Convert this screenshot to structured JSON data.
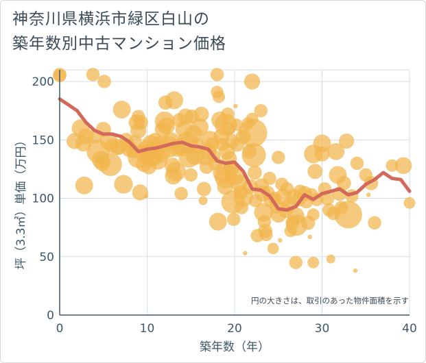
{
  "chart_data": {
    "type": "scatter",
    "title_lines": [
      "神奈川県横浜市緑区白山の",
      "築年数別中古マンション価格"
    ],
    "xlabel": "築年数（年）",
    "ylabel": "坪（3.3㎡）単価（万円）",
    "xlim": [
      0,
      40
    ],
    "ylim": [
      0,
      210
    ],
    "xticks": [
      "0",
      "10",
      "20",
      "30",
      "40"
    ],
    "yticks": [
      "0",
      "50",
      "100",
      "150",
      "200"
    ],
    "note": "円の大きさは、取引のあった物件面積を示す",
    "grid": true,
    "colors": {
      "bubble": "#f1b54e",
      "line": "#d2695a",
      "grid": "#d3dde3",
      "axis": "#3d5868"
    },
    "bubbles": [
      {
        "x": 0,
        "y": 206,
        "s": 1.5
      },
      {
        "x": 0,
        "y": 205,
        "s": 1.5
      },
      {
        "x": 1.7,
        "y": 149,
        "s": 1.8
      },
      {
        "x": 2.4,
        "y": 160,
        "s": 2.0
      },
      {
        "x": 2.7,
        "y": 147,
        "s": 1.8
      },
      {
        "x": 2.8,
        "y": 111,
        "s": 2.0
      },
      {
        "x": 3,
        "y": 153,
        "s": 1.8
      },
      {
        "x": 3.8,
        "y": 206,
        "s": 1.5
      },
      {
        "x": 4,
        "y": 153,
        "s": 1.6
      },
      {
        "x": 4.4,
        "y": 140,
        "s": 2.6
      },
      {
        "x": 4.7,
        "y": 133,
        "s": 2.0
      },
      {
        "x": 4.9,
        "y": 130,
        "s": 1.8
      },
      {
        "x": 5,
        "y": 159,
        "s": 1.7
      },
      {
        "x": 5.1,
        "y": 200,
        "s": 1.5
      },
      {
        "x": 5.6,
        "y": 149,
        "s": 2.0
      },
      {
        "x": 5.8,
        "y": 129,
        "s": 2.6
      },
      {
        "x": 6,
        "y": 145,
        "s": 1.6
      },
      {
        "x": 6.6,
        "y": 144,
        "s": 1.8
      },
      {
        "x": 6.8,
        "y": 143,
        "s": 1.5
      },
      {
        "x": 7.1,
        "y": 176,
        "s": 2.0
      },
      {
        "x": 7.3,
        "y": 112,
        "s": 2.1
      },
      {
        "x": 7.6,
        "y": 150,
        "s": 1.6
      },
      {
        "x": 7.8,
        "y": 145,
        "s": 1.6
      },
      {
        "x": 8,
        "y": 142,
        "s": 1.8
      },
      {
        "x": 8.4,
        "y": 140,
        "s": 1.5
      },
      {
        "x": 8.6,
        "y": 148,
        "s": 1.6
      },
      {
        "x": 8.8,
        "y": 165,
        "s": 1.8
      },
      {
        "x": 9,
        "y": 170,
        "s": 1.5
      },
      {
        "x": 9,
        "y": 135,
        "s": 2.4
      },
      {
        "x": 9,
        "y": 158,
        "s": 1.8
      },
      {
        "x": 9.2,
        "y": 105,
        "s": 1.8
      },
      {
        "x": 9.3,
        "y": 165,
        "s": 1.6
      },
      {
        "x": 9.5,
        "y": 140,
        "s": 1.5
      },
      {
        "x": 9.6,
        "y": 129,
        "s": 1.7
      },
      {
        "x": 9.7,
        "y": 137,
        "s": 1.9
      },
      {
        "x": 9.9,
        "y": 102,
        "s": 0.5
      },
      {
        "x": 10,
        "y": 142,
        "s": 2.1
      },
      {
        "x": 10.2,
        "y": 127,
        "s": 1.7
      },
      {
        "x": 10.4,
        "y": 147,
        "s": 1.9
      },
      {
        "x": 10.5,
        "y": 137,
        "s": 2.6
      },
      {
        "x": 10.7,
        "y": 136,
        "s": 1.8
      },
      {
        "x": 10.9,
        "y": 150,
        "s": 1.6
      },
      {
        "x": 11,
        "y": 141,
        "s": 2.0
      },
      {
        "x": 11.2,
        "y": 133,
        "s": 2.2
      },
      {
        "x": 11.4,
        "y": 146,
        "s": 1.9
      },
      {
        "x": 11.6,
        "y": 139,
        "s": 2.1
      },
      {
        "x": 11.8,
        "y": 159,
        "s": 1.8
      },
      {
        "x": 12,
        "y": 166,
        "s": 2.2
      },
      {
        "x": 12.1,
        "y": 182,
        "s": 1.6
      },
      {
        "x": 12.2,
        "y": 162,
        "s": 1.9
      },
      {
        "x": 12.5,
        "y": 144,
        "s": 2.4
      },
      {
        "x": 12.7,
        "y": 149,
        "s": 2.0
      },
      {
        "x": 12.9,
        "y": 128,
        "s": 1.8
      },
      {
        "x": 13,
        "y": 119,
        "s": 1.9
      },
      {
        "x": 13.1,
        "y": 184,
        "s": 2.0
      },
      {
        "x": 13.3,
        "y": 123,
        "s": 2.2
      },
      {
        "x": 13.5,
        "y": 142,
        "s": 1.7
      },
      {
        "x": 13.7,
        "y": 167,
        "s": 1.6
      },
      {
        "x": 13.9,
        "y": 104,
        "s": 1.5
      },
      {
        "x": 14,
        "y": 144,
        "s": 2.1
      },
      {
        "x": 14.2,
        "y": 159,
        "s": 1.9
      },
      {
        "x": 14.4,
        "y": 170,
        "s": 1.8
      },
      {
        "x": 14.6,
        "y": 148,
        "s": 2.4
      },
      {
        "x": 14.8,
        "y": 135,
        "s": 2.3
      },
      {
        "x": 15,
        "y": 120,
        "s": 1.5
      },
      {
        "x": 15.1,
        "y": 170,
        "s": 1.6
      },
      {
        "x": 15.3,
        "y": 155,
        "s": 2.0
      },
      {
        "x": 15.5,
        "y": 137,
        "s": 2.2
      },
      {
        "x": 15.7,
        "y": 145,
        "s": 1.8
      },
      {
        "x": 16,
        "y": 161,
        "s": 2.0
      },
      {
        "x": 16.2,
        "y": 172,
        "s": 1.7
      },
      {
        "x": 16.4,
        "y": 98,
        "s": 1.0
      },
      {
        "x": 16.5,
        "y": 108,
        "s": 1.6
      },
      {
        "x": 16.6,
        "y": 135,
        "s": 1.8
      },
      {
        "x": 16.8,
        "y": 127,
        "s": 1.6
      },
      {
        "x": 17,
        "y": 140,
        "s": 1.8
      },
      {
        "x": 17.2,
        "y": 150,
        "s": 2.0
      },
      {
        "x": 17.4,
        "y": 146,
        "s": 1.6
      },
      {
        "x": 17.6,
        "y": 136,
        "s": 1.5
      },
      {
        "x": 17.8,
        "y": 130,
        "s": 1.6
      },
      {
        "x": 18,
        "y": 206,
        "s": 1.5
      },
      {
        "x": 18,
        "y": 191,
        "s": 1.4
      },
      {
        "x": 18.1,
        "y": 80,
        "s": 2.0
      },
      {
        "x": 18.2,
        "y": 187,
        "s": 1.4
      },
      {
        "x": 18.3,
        "y": 167,
        "s": 1.9
      },
      {
        "x": 18.5,
        "y": 153,
        "s": 1.8
      },
      {
        "x": 18.6,
        "y": 146,
        "s": 1.5
      },
      {
        "x": 18.7,
        "y": 122,
        "s": 2.3
      },
      {
        "x": 18.9,
        "y": 110,
        "s": 1.8
      },
      {
        "x": 19,
        "y": 163,
        "s": 2.5
      },
      {
        "x": 19,
        "y": 118,
        "s": 2.5
      },
      {
        "x": 19.1,
        "y": 140,
        "s": 1.8
      },
      {
        "x": 19.2,
        "y": 172,
        "s": 1.5
      },
      {
        "x": 19.3,
        "y": 160,
        "s": 1.6
      },
      {
        "x": 19.4,
        "y": 134,
        "s": 1.7
      },
      {
        "x": 19.6,
        "y": 126,
        "s": 1.8
      },
      {
        "x": 19.7,
        "y": 149,
        "s": 1.6
      },
      {
        "x": 19.8,
        "y": 97,
        "s": 2.6
      },
      {
        "x": 19.9,
        "y": 82,
        "s": 1.5
      },
      {
        "x": 20,
        "y": 120,
        "s": 2.3
      },
      {
        "x": 20.1,
        "y": 179,
        "s": 0.5
      },
      {
        "x": 20.2,
        "y": 163,
        "s": 1.4
      },
      {
        "x": 20.3,
        "y": 146,
        "s": 1.6
      },
      {
        "x": 20.5,
        "y": 113,
        "s": 1.9
      },
      {
        "x": 20.7,
        "y": 105,
        "s": 1.6
      },
      {
        "x": 20.8,
        "y": 92,
        "s": 1.5
      },
      {
        "x": 21,
        "y": 153,
        "s": 1.7
      },
      {
        "x": 21,
        "y": 101,
        "s": 2.2
      },
      {
        "x": 21.2,
        "y": 53,
        "s": 0.5
      },
      {
        "x": 21.5,
        "y": 164,
        "s": 1.4
      },
      {
        "x": 21.7,
        "y": 140,
        "s": 1.6
      },
      {
        "x": 21.8,
        "y": 110,
        "s": 1.7
      },
      {
        "x": 22,
        "y": 200,
        "s": 1.8
      },
      {
        "x": 22,
        "y": 168,
        "s": 1.4
      },
      {
        "x": 22.1,
        "y": 156,
        "s": 3.2
      },
      {
        "x": 22.2,
        "y": 137,
        "s": 2.7
      },
      {
        "x": 22.3,
        "y": 122,
        "s": 1.6
      },
      {
        "x": 22.4,
        "y": 98,
        "s": 1.5
      },
      {
        "x": 22.6,
        "y": 68,
        "s": 1.5
      },
      {
        "x": 23,
        "y": 175,
        "s": 1.5
      },
      {
        "x": 23.1,
        "y": 111,
        "s": 1.6
      },
      {
        "x": 23.2,
        "y": 104,
        "s": 1.8
      },
      {
        "x": 23.3,
        "y": 88,
        "s": 2.1
      },
      {
        "x": 23.4,
        "y": 80,
        "s": 1.5
      },
      {
        "x": 23.5,
        "y": 72,
        "s": 1.6
      },
      {
        "x": 23.6,
        "y": 69,
        "s": 1.5
      },
      {
        "x": 23.8,
        "y": 105,
        "s": 1.5
      },
      {
        "x": 24,
        "y": 117,
        "s": 1.5
      },
      {
        "x": 24.2,
        "y": 98,
        "s": 1.7
      },
      {
        "x": 24.4,
        "y": 57,
        "s": 1.3
      },
      {
        "x": 24.6,
        "y": 100,
        "s": 1.5
      },
      {
        "x": 24.8,
        "y": 93,
        "s": 1.6
      },
      {
        "x": 25,
        "y": 135,
        "s": 1.5
      },
      {
        "x": 25,
        "y": 86,
        "s": 1.8
      },
      {
        "x": 25.2,
        "y": 64,
        "s": 0.5
      },
      {
        "x": 25.4,
        "y": 112,
        "s": 1.5
      },
      {
        "x": 25.6,
        "y": 101,
        "s": 1.9
      },
      {
        "x": 25.8,
        "y": 89,
        "s": 1.6
      },
      {
        "x": 26,
        "y": 108,
        "s": 1.5
      },
      {
        "x": 26.2,
        "y": 94,
        "s": 1.6
      },
      {
        "x": 26.4,
        "y": 72,
        "s": 1.4
      },
      {
        "x": 26.6,
        "y": 79,
        "s": 1.5
      },
      {
        "x": 26.8,
        "y": 101,
        "s": 1.8
      },
      {
        "x": 27,
        "y": 45,
        "s": 1.5
      },
      {
        "x": 27,
        "y": 85,
        "s": 1.9
      },
      {
        "x": 27.1,
        "y": 77,
        "s": 2.4
      },
      {
        "x": 27.3,
        "y": 99,
        "s": 1.6
      },
      {
        "x": 27.5,
        "y": 106,
        "s": 1.5
      },
      {
        "x": 28,
        "y": 104,
        "s": 1.7
      },
      {
        "x": 28.2,
        "y": 97,
        "s": 1.5
      },
      {
        "x": 28.4,
        "y": 79,
        "s": 1.6
      },
      {
        "x": 28.6,
        "y": 67,
        "s": 0.5
      },
      {
        "x": 28.8,
        "y": 103,
        "s": 1.5
      },
      {
        "x": 29,
        "y": 45,
        "s": 1.3
      },
      {
        "x": 29,
        "y": 138,
        "s": 2.1
      },
      {
        "x": 29,
        "y": 86,
        "s": 1.4
      },
      {
        "x": 29.2,
        "y": 123,
        "s": 1.7
      },
      {
        "x": 29.4,
        "y": 99,
        "s": 1.5
      },
      {
        "x": 30,
        "y": 147,
        "s": 2.0
      },
      {
        "x": 30,
        "y": 138,
        "s": 1.7
      },
      {
        "x": 30.3,
        "y": 108,
        "s": 1.5
      },
      {
        "x": 30.6,
        "y": 100,
        "s": 1.6
      },
      {
        "x": 30.8,
        "y": 90,
        "s": 1.5
      },
      {
        "x": 31,
        "y": 48,
        "s": 1.0
      },
      {
        "x": 31.3,
        "y": 87,
        "s": 1.5
      },
      {
        "x": 31.6,
        "y": 140,
        "s": 1.9
      },
      {
        "x": 31.8,
        "y": 120,
        "s": 2.0
      },
      {
        "x": 32,
        "y": 104,
        "s": 1.6
      },
      {
        "x": 32.2,
        "y": 92,
        "s": 1.5
      },
      {
        "x": 32.5,
        "y": 113,
        "s": 1.6
      },
      {
        "x": 32.8,
        "y": 149,
        "s": 1.7
      },
      {
        "x": 33,
        "y": 86,
        "s": 3.1
      },
      {
        "x": 33.4,
        "y": 102,
        "s": 1.5
      },
      {
        "x": 33.8,
        "y": 38,
        "s": 0.5
      },
      {
        "x": 34,
        "y": 130,
        "s": 1.5
      },
      {
        "x": 35,
        "y": 120,
        "s": 1.5
      },
      {
        "x": 35.3,
        "y": 103,
        "s": 0.5
      },
      {
        "x": 35.6,
        "y": 113,
        "s": 1.6
      },
      {
        "x": 36,
        "y": 79,
        "s": 1.5
      },
      {
        "x": 38,
        "y": 128,
        "s": 1.4
      },
      {
        "x": 39.3,
        "y": 128,
        "s": 1.9
      },
      {
        "x": 40,
        "y": 96,
        "s": 1.3
      }
    ],
    "trend": {
      "x": [
        0,
        1,
        2,
        3,
        4,
        5,
        6,
        7,
        8,
        9,
        10,
        11,
        12,
        13,
        14,
        15,
        16,
        17,
        18,
        19,
        20,
        21,
        22,
        23,
        24,
        25,
        26,
        27,
        28,
        29,
        30,
        31,
        32,
        33,
        34,
        35,
        36,
        37,
        38,
        39,
        40
      ],
      "y": [
        185,
        180,
        175,
        165,
        158,
        155,
        155,
        153,
        148,
        140,
        142,
        143,
        145,
        147,
        148,
        145,
        144,
        142,
        132,
        130,
        131,
        123,
        108,
        107,
        102,
        91,
        90,
        93,
        103,
        99,
        104,
        106,
        108,
        103,
        105,
        112,
        116,
        122,
        117,
        116,
        106
      ]
    }
  }
}
